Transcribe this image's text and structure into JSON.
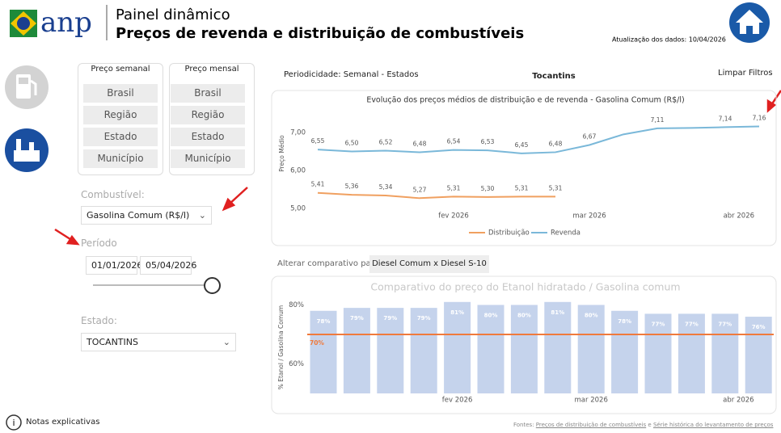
{
  "header": {
    "logo": "anp",
    "title": "Painel dinâmico",
    "subtitle": "Preços de revenda e distribuição de combustíveis",
    "update": "Atualização dos dados: 10/04/2026"
  },
  "filters": {
    "weekly": {
      "label": "Preço semanal",
      "buttons": [
        "Brasil",
        "Região",
        "Estado",
        "Município"
      ]
    },
    "monthly": {
      "label": "Preço mensal",
      "buttons": [
        "Brasil",
        "Região",
        "Estado",
        "Município"
      ]
    },
    "fuel": {
      "label": "Combustível:",
      "value": "Gasolina Comum (R$/l)"
    },
    "period": {
      "label": "Período",
      "start": "01/01/2026",
      "end": "05/04/2026"
    },
    "state": {
      "label": "Estado:",
      "value": "TOCANTINS"
    }
  },
  "top": {
    "periodicity": "Periodicidade: Semanal - Estados",
    "state": "Tocantins",
    "clear": "Limpar Filtros"
  },
  "compare": {
    "label": "Alterar comparativo para:",
    "button": "Diesel Comum x Diesel S-10"
  },
  "notes": "Notas explicativas",
  "footer": {
    "prefix": "Fontes:",
    "link1": "Preços de distribuição de combustíveis",
    "joiner": "e",
    "link2": "Série histórica do levantamento de preços"
  },
  "chart_data": [
    {
      "type": "line",
      "title": "Evolução dos preços médios de distribuição e de revenda - Gasolina Comum (R$/l)",
      "ylabel": "Preço Médio",
      "categories": [
        null,
        null,
        null,
        null,
        null,
        null,
        null,
        null,
        null,
        null,
        null,
        null,
        null,
        null
      ],
      "xticks": [
        {
          "value": 4,
          "label": "fev 2026"
        },
        {
          "value": 8,
          "label": "mar 2026"
        },
        {
          "value": 12.4,
          "label": "abr 2026"
        }
      ],
      "ylim": [
        4.9,
        7.5
      ],
      "yticks": [
        {
          "value": 5,
          "label": "5,00"
        },
        {
          "value": 6,
          "label": "6,00"
        },
        {
          "value": 7,
          "label": "7,00"
        }
      ],
      "series": [
        {
          "name": "Distribuição",
          "color": "#f0a060",
          "values": [
            5.41,
            5.36,
            5.34,
            5.27,
            5.31,
            5.3,
            5.31,
            5.31,
            null,
            null,
            null,
            null,
            null,
            null
          ],
          "value_labels": [
            "5,41",
            "5,36",
            "5,34",
            "5,27",
            "5,31",
            "5,30",
            "5,31",
            "5,31",
            null,
            null,
            null,
            null,
            null,
            null
          ]
        },
        {
          "name": "Revenda",
          "color": "#7ab8d9",
          "values": [
            6.55,
            6.5,
            6.52,
            6.48,
            6.54,
            6.53,
            6.45,
            6.48,
            6.67,
            6.95,
            7.11,
            7.12,
            7.14,
            7.16
          ],
          "value_labels": [
            "6,55",
            "6,50",
            "6,52",
            "6,48",
            "6,54",
            "6,53",
            "6,45",
            "6,48",
            "6,67",
            null,
            "7,11",
            null,
            "7,14",
            "7,16"
          ]
        }
      ]
    },
    {
      "type": "bar",
      "title": "Comparativo do preço do Etanol hidratado / Gasolina comum",
      "ylabel": "% Etanol / Gasolina Comum",
      "categories": [
        null,
        null,
        null,
        null,
        null,
        null,
        null,
        null,
        null,
        null,
        null,
        null,
        null,
        null
      ],
      "xticks": [
        {
          "value": 4,
          "label": "fev 2026"
        },
        {
          "value": 8,
          "label": "mar 2026"
        },
        {
          "value": 12.4,
          "label": "abr 2026"
        }
      ],
      "ylim": [
        50,
        83
      ],
      "yticks": [
        {
          "value": 60,
          "label": "60%"
        },
        {
          "value": 80,
          "label": "80%"
        }
      ],
      "color": "#c5d3ec",
      "values": [
        78,
        79,
        79,
        79,
        81,
        80,
        80,
        81,
        80,
        78,
        77,
        77,
        77,
        76
      ],
      "value_labels": [
        "78%",
        "79%",
        "79%",
        "79%",
        "81%",
        "80%",
        "80%",
        "81%",
        "80%",
        "78%",
        "77%",
        "77%",
        "77%",
        "76%"
      ],
      "reference": {
        "value": 70,
        "label": "70%",
        "color": "#f07a3c"
      }
    }
  ]
}
